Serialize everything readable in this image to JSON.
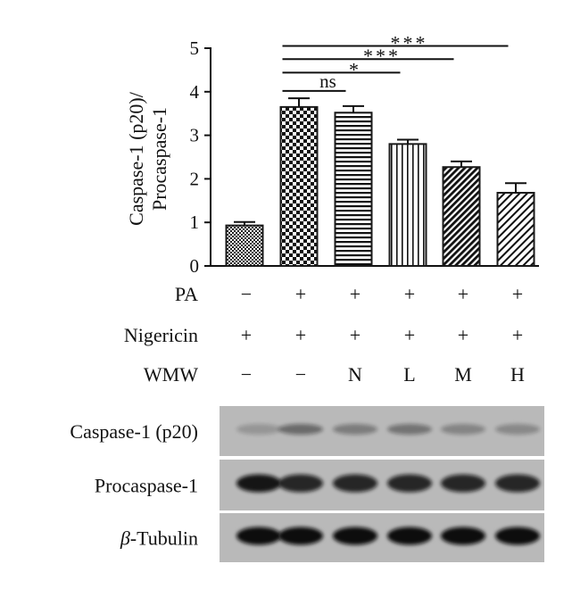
{
  "chart_data": {
    "type": "bar",
    "ylabel_line1": "Caspase-1 (p20)/",
    "ylabel_line2": "Procaspase-1",
    "ylim": [
      0,
      5
    ],
    "yticks": [
      "0",
      "1",
      "2",
      "3",
      "4",
      "5"
    ],
    "categories": [
      "1",
      "2",
      "3",
      "4",
      "5",
      "6"
    ],
    "values": [
      0.93,
      3.65,
      3.52,
      2.8,
      2.27,
      1.68
    ],
    "errors": [
      0.08,
      0.2,
      0.15,
      0.1,
      0.13,
      0.22
    ],
    "patterns": [
      "fine-dots",
      "checker",
      "horizontal",
      "vertical",
      "diag-dense",
      "diag-sparse"
    ],
    "significance": [
      {
        "from": 1,
        "to": 2,
        "label": "ns",
        "level": 4.02
      },
      {
        "from": 1,
        "to": 3,
        "label": "*",
        "level": 4.44
      },
      {
        "from": 1,
        "to": 4,
        "label": "***",
        "level": 4.75
      },
      {
        "from": 1,
        "to": 5,
        "label": "***",
        "level": 5.05
      }
    ],
    "conditions": [
      {
        "label": "PA",
        "values": [
          "−",
          "+",
          "+",
          "+",
          "+",
          "+"
        ]
      },
      {
        "label": "Nigericin",
        "values": [
          "+",
          "+",
          "+",
          "+",
          "+",
          "+"
        ]
      },
      {
        "label": "WMW",
        "values": [
          "−",
          "−",
          "N",
          "L",
          "M",
          "H"
        ]
      }
    ],
    "blot": {
      "rows": [
        {
          "label": "Caspase-1 (p20)",
          "intensities": [
            0.2,
            0.45,
            0.35,
            0.4,
            0.3,
            0.28
          ]
        },
        {
          "label": "Procaspase-1",
          "intensities": [
            0.95,
            0.85,
            0.85,
            0.85,
            0.85,
            0.85
          ]
        },
        {
          "label_symbol": "β",
          "label_rest": "-Tubulin",
          "intensities": [
            1.0,
            1.0,
            1.0,
            1.0,
            1.0,
            1.0
          ]
        }
      ]
    },
    "colors": {
      "bar_edge": "#1a1a1a",
      "blot_bg": "#b9b9b9",
      "band": "#111111"
    }
  }
}
